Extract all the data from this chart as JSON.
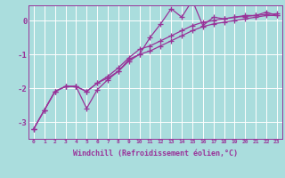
{
  "xlabel": "Windchill (Refroidissement éolien,°C)",
  "x": [
    0,
    1,
    2,
    3,
    4,
    5,
    6,
    7,
    8,
    9,
    10,
    11,
    12,
    13,
    14,
    15,
    16,
    17,
    18,
    19,
    20,
    21,
    22,
    23
  ],
  "y_jagged": [
    -3.2,
    -2.65,
    -2.1,
    -1.95,
    -1.95,
    -2.6,
    -2.05,
    -1.75,
    -1.5,
    -1.15,
    -1.0,
    -0.5,
    -0.1,
    0.35,
    0.1,
    0.6,
    -0.15,
    0.1,
    0.05,
    0.1,
    0.15,
    0.15,
    0.25,
    0.15
  ],
  "y_smooth1": [
    -3.2,
    -2.65,
    -2.1,
    -1.95,
    -1.95,
    -2.1,
    -1.85,
    -1.65,
    -1.4,
    -1.1,
    -0.85,
    -0.75,
    -0.6,
    -0.45,
    -0.3,
    -0.15,
    -0.05,
    0.0,
    0.05,
    0.1,
    0.12,
    0.15,
    0.18,
    0.2
  ],
  "y_smooth2": [
    -3.2,
    -2.65,
    -2.1,
    -1.95,
    -1.95,
    -2.1,
    -1.85,
    -1.7,
    -1.5,
    -1.2,
    -1.0,
    -0.9,
    -0.75,
    -0.6,
    -0.45,
    -0.3,
    -0.18,
    -0.1,
    -0.05,
    0.0,
    0.05,
    0.1,
    0.15,
    0.15
  ],
  "line_color": "#993399",
  "bg_color": "#aadddd",
  "ylim": [
    -3.5,
    0.45
  ],
  "yticks": [
    -3,
    -2,
    -1,
    0
  ],
  "grid_color": "#ffffff",
  "marker": "+"
}
